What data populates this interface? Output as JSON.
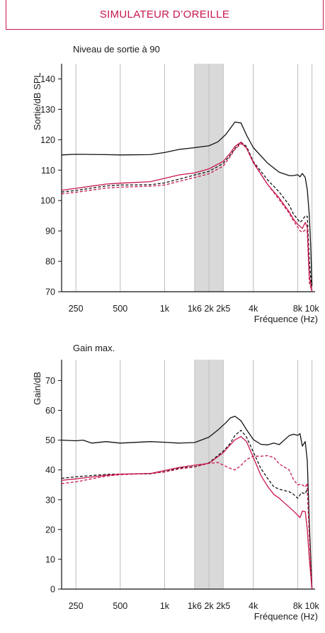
{
  "header": {
    "title": "SIMULATEUR D’OREILLE"
  },
  "colors": {
    "accent": "#c8174b",
    "black": "#111111",
    "band": "#d9d9d9",
    "grid": "#bdbdbd"
  },
  "chart_data": [
    {
      "type": "line",
      "title": "Niveau de sortie à 90",
      "xlabel": "Fréquence (Hz)",
      "ylabel": "Sortie/dB SPL",
      "x_scale": "log",
      "xlim": [
        200,
        10500
      ],
      "ylim": [
        70,
        145
      ],
      "x_ticks": [
        250,
        500,
        1000,
        1600,
        2000,
        2500,
        4000,
        8000,
        10000
      ],
      "x_tick_labels": [
        "250",
        "500",
        "1k",
        "1k6",
        "2k",
        "2k5",
        "4k",
        "8k",
        "10k"
      ],
      "y_ticks": [
        70,
        80,
        90,
        100,
        110,
        120,
        130,
        140
      ],
      "y_tick_labels": [
        "70",
        "80",
        "90",
        "100",
        "110",
        "120",
        "130",
        "140"
      ],
      "shaded_band": [
        1600,
        2500
      ],
      "grid": true,
      "series": [
        {
          "color": "#111111",
          "dash": "solid",
          "x": [
            200,
            250,
            400,
            500,
            800,
            1000,
            1250,
            1600,
            2000,
            2300,
            2600,
            2800,
            3000,
            3300,
            3600,
            4000,
            5000,
            6000,
            7000,
            7500,
            8000,
            8300,
            8600,
            9000,
            9300,
            9600,
            9800,
            10000
          ],
          "y": [
            115,
            115.2,
            115.1,
            115,
            115.1,
            115.8,
            116.8,
            117.4,
            118,
            119.3,
            121.7,
            123.8,
            125.8,
            125.5,
            121.5,
            117.4,
            112.3,
            109.3,
            108.2,
            108.2,
            108.5,
            107.8,
            108.9,
            107.6,
            103.5,
            95,
            85,
            72
          ]
        },
        {
          "color": "#111111",
          "dash": "dashed",
          "x": [
            200,
            250,
            400,
            500,
            800,
            1000,
            1250,
            1600,
            2000,
            2500,
            2800,
            3000,
            3300,
            3600,
            4000,
            5000,
            6000,
            7000,
            7500,
            8000,
            8300,
            8600,
            9000,
            9300,
            9600,
            10000
          ],
          "y": [
            102.8,
            103.3,
            104.8,
            105.1,
            105.2,
            105.8,
            107,
            108.4,
            109.6,
            112.2,
            115,
            117.1,
            119.2,
            117.8,
            112.8,
            106.8,
            102.8,
            98.5,
            95.5,
            93.8,
            92.8,
            93.5,
            95,
            94.8,
            80,
            70
          ]
        },
        {
          "color": "#c8174b",
          "dash": "solid",
          "x": [
            200,
            250,
            400,
            500,
            800,
            1000,
            1250,
            1600,
            2000,
            2500,
            2800,
            3000,
            3300,
            3600,
            4000,
            5000,
            6000,
            7000,
            7500,
            8000,
            8300,
            8600,
            9000,
            9300,
            9600,
            10000
          ],
          "y": [
            103.4,
            104,
            105.4,
            105.7,
            106.2,
            107.3,
            108.4,
            109.1,
            110.4,
            112.9,
            115.7,
            117.8,
            119.2,
            117.2,
            112.5,
            105.3,
            100.8,
            96.3,
            93.8,
            92.2,
            91.5,
            90.8,
            92.8,
            91.2,
            75,
            70
          ]
        },
        {
          "color": "#c8174b",
          "dash": "dashed",
          "x": [
            200,
            250,
            400,
            500,
            800,
            1000,
            1250,
            1600,
            2000,
            2500,
            2800,
            3000,
            3300,
            3600,
            4000,
            5000,
            6000,
            7000,
            7500,
            8000,
            8300,
            8600,
            9000,
            9300,
            9600,
            10000
          ],
          "y": [
            102.2,
            102.7,
            104.1,
            104.4,
            104.7,
            105.1,
            106.3,
            107.6,
            108.8,
            111.3,
            114.6,
            116.8,
            118.7,
            117.3,
            112.4,
            105.3,
            100.3,
            95.8,
            93.3,
            91.3,
            90,
            89.6,
            90.3,
            89.6,
            73,
            70
          ]
        }
      ]
    },
    {
      "type": "line",
      "title": "Gain max.",
      "xlabel": "Fréquence (Hz)",
      "ylabel": "Gain/dB",
      "x_scale": "log",
      "xlim": [
        200,
        10500
      ],
      "ylim": [
        0,
        77
      ],
      "x_ticks": [
        250,
        500,
        1000,
        1600,
        2000,
        2500,
        4000,
        8000,
        10000
      ],
      "x_tick_labels": [
        "250",
        "500",
        "1k",
        "1k6",
        "2k",
        "2k5",
        "4k",
        "8k",
        "10k"
      ],
      "y_ticks": [
        0,
        10,
        20,
        30,
        40,
        50,
        60,
        70
      ],
      "y_tick_labels": [
        "0",
        "10",
        "20",
        "30",
        "40",
        "50",
        "60",
        "70"
      ],
      "shaded_band": [
        1600,
        2500
      ],
      "grid": true,
      "series": [
        {
          "color": "#111111",
          "dash": "solid",
          "x": [
            200,
            250,
            280,
            320,
            400,
            500,
            800,
            1000,
            1250,
            1600,
            2000,
            2300,
            2600,
            2800,
            3000,
            3300,
            3600,
            4000,
            4500,
            5000,
            5500,
            6000,
            7000,
            7500,
            8000,
            8300,
            8600,
            9000,
            9300,
            9600,
            10000
          ],
          "y": [
            50,
            49.8,
            50,
            49,
            49.5,
            49,
            49.5,
            49.3,
            49,
            49.2,
            51,
            53.4,
            55.8,
            57.5,
            58,
            56.5,
            53.5,
            50.2,
            48.6,
            48.4,
            49,
            48.5,
            51.5,
            52,
            51.6,
            52.2,
            48,
            49.5,
            43,
            22,
            0
          ]
        },
        {
          "color": "#111111",
          "dash": "dashed",
          "x": [
            200,
            250,
            400,
            500,
            800,
            1000,
            1250,
            1600,
            2000,
            2500,
            2800,
            3000,
            3300,
            3600,
            4000,
            4500,
            5000,
            5500,
            6000,
            7000,
            7500,
            8000,
            8500,
            9000,
            9300,
            9600,
            10000
          ],
          "y": [
            37.2,
            37.7,
            38.5,
            38.6,
            38.7,
            39.4,
            40.6,
            41.1,
            42.4,
            46.3,
            49,
            51.6,
            53.3,
            51,
            46,
            40.5,
            37.2,
            34.4,
            33.5,
            32.7,
            31.8,
            30.5,
            32.4,
            32,
            33.8,
            18,
            0
          ]
        },
        {
          "color": "#c8174b",
          "dash": "solid",
          "x": [
            200,
            250,
            400,
            500,
            800,
            1000,
            1250,
            1600,
            2000,
            2500,
            2800,
            3000,
            3300,
            3600,
            4000,
            4500,
            5000,
            5500,
            6000,
            7000,
            7500,
            8000,
            8300,
            8600,
            9000,
            9300,
            9600,
            10000
          ],
          "y": [
            36.5,
            37,
            38.2,
            38.6,
            38.8,
            39.8,
            40.8,
            41.6,
            42.2,
            45.8,
            48.5,
            50.1,
            51.2,
            49.5,
            44.2,
            38.2,
            34.5,
            31.8,
            30.5,
            27.5,
            26.2,
            24.8,
            24,
            26.2,
            26,
            20,
            10,
            0
          ]
        },
        {
          "color": "#c8174b",
          "dash": "dashed",
          "x": [
            200,
            250,
            400,
            500,
            800,
            1000,
            1250,
            1600,
            2000,
            2300,
            2600,
            2800,
            3000,
            3300,
            3600,
            4000,
            4500,
            5000,
            5500,
            6000,
            7000,
            7500,
            8000,
            8500,
            9000,
            9300,
            9600,
            10000
          ],
          "y": [
            35.4,
            36,
            37.9,
            38.4,
            38.8,
            39.3,
            40.3,
            41,
            42.2,
            42.5,
            41.2,
            40.5,
            40,
            41.5,
            43.5,
            44.6,
            44.6,
            44.8,
            44.2,
            42,
            40,
            36.7,
            35,
            35.2,
            34.2,
            35.5,
            18,
            0
          ]
        }
      ]
    }
  ]
}
